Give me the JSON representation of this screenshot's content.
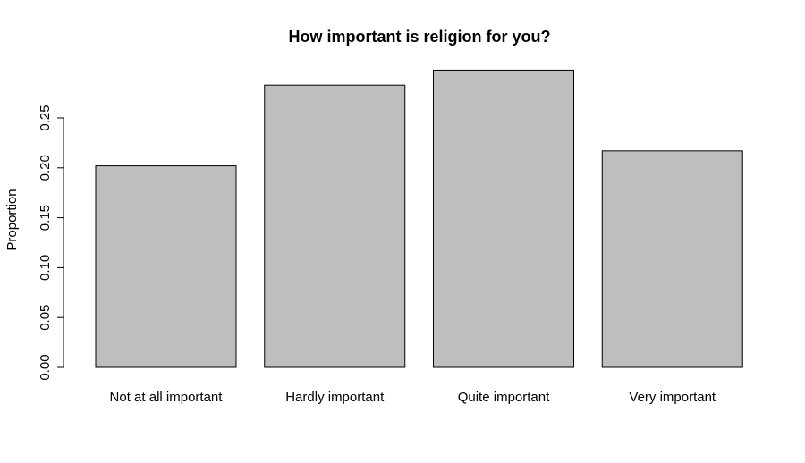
{
  "chart_data": {
    "type": "bar",
    "title": "How important is religion for you?",
    "xlabel": "",
    "ylabel": "Proportion",
    "categories": [
      "Not at all important",
      "Hardly important",
      "Quite important",
      "Very important"
    ],
    "values": [
      0.202,
      0.283,
      0.298,
      0.217
    ],
    "ylim": [
      0,
      0.3
    ],
    "yticks": [
      0.0,
      0.05,
      0.1,
      0.15,
      0.2,
      0.25
    ],
    "ytick_labels": [
      "0.00",
      "0.05",
      "0.10",
      "0.15",
      "0.20",
      "0.25"
    ],
    "grid": false,
    "legend": "none",
    "bar_color": "#bebebe",
    "bar_border_color": "#000000"
  }
}
